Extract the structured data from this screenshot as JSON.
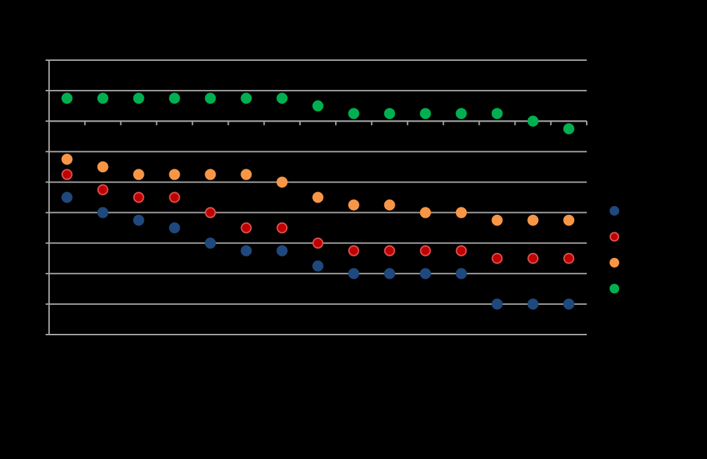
{
  "chart_data": {
    "type": "scatter",
    "title": "",
    "xlabel": "",
    "ylabel": "",
    "x": [
      1,
      2,
      3,
      4,
      5,
      6,
      7,
      8,
      9,
      10,
      11,
      12,
      13,
      14,
      15
    ],
    "xlim": [
      0.5,
      15.5
    ],
    "ylim": [
      0,
      9
    ],
    "y_gridlines": [
      0,
      1,
      2,
      3,
      4,
      5,
      6,
      7,
      8,
      9
    ],
    "x_axis_at": 7,
    "grid": true,
    "legend_position": "right",
    "series": [
      {
        "values": [
          4.5,
          4.0,
          3.75,
          3.5,
          3.0,
          2.75,
          2.75,
          2.25,
          2.0,
          2.0,
          2.0,
          2.0,
          1.0,
          1.0,
          1.0
        ],
        "color": "#1F497D",
        "border": "#1F497D"
      },
      {
        "values": [
          5.25,
          4.75,
          4.5,
          4.5,
          4.0,
          3.5,
          3.5,
          3.0,
          2.75,
          2.75,
          2.75,
          2.75,
          2.5,
          2.5,
          2.5
        ],
        "color": "#C00000",
        "border": "#D9534F"
      },
      {
        "values": [
          5.75,
          5.5,
          5.25,
          5.25,
          5.25,
          5.25,
          5.0,
          4.5,
          4.25,
          4.25,
          4.0,
          4.0,
          3.75,
          3.75,
          3.75
        ],
        "color": "#F79646",
        "border": "#F79646"
      },
      {
        "values": [
          7.75,
          7.75,
          7.75,
          7.75,
          7.75,
          7.75,
          7.75,
          7.5,
          7.25,
          7.25,
          7.25,
          7.25,
          7.25,
          7.0,
          6.75
        ],
        "color": "#00B050",
        "border": "#00B050"
      }
    ],
    "colors": {
      "background": "#000000",
      "grid": "#A6A6A6"
    }
  }
}
